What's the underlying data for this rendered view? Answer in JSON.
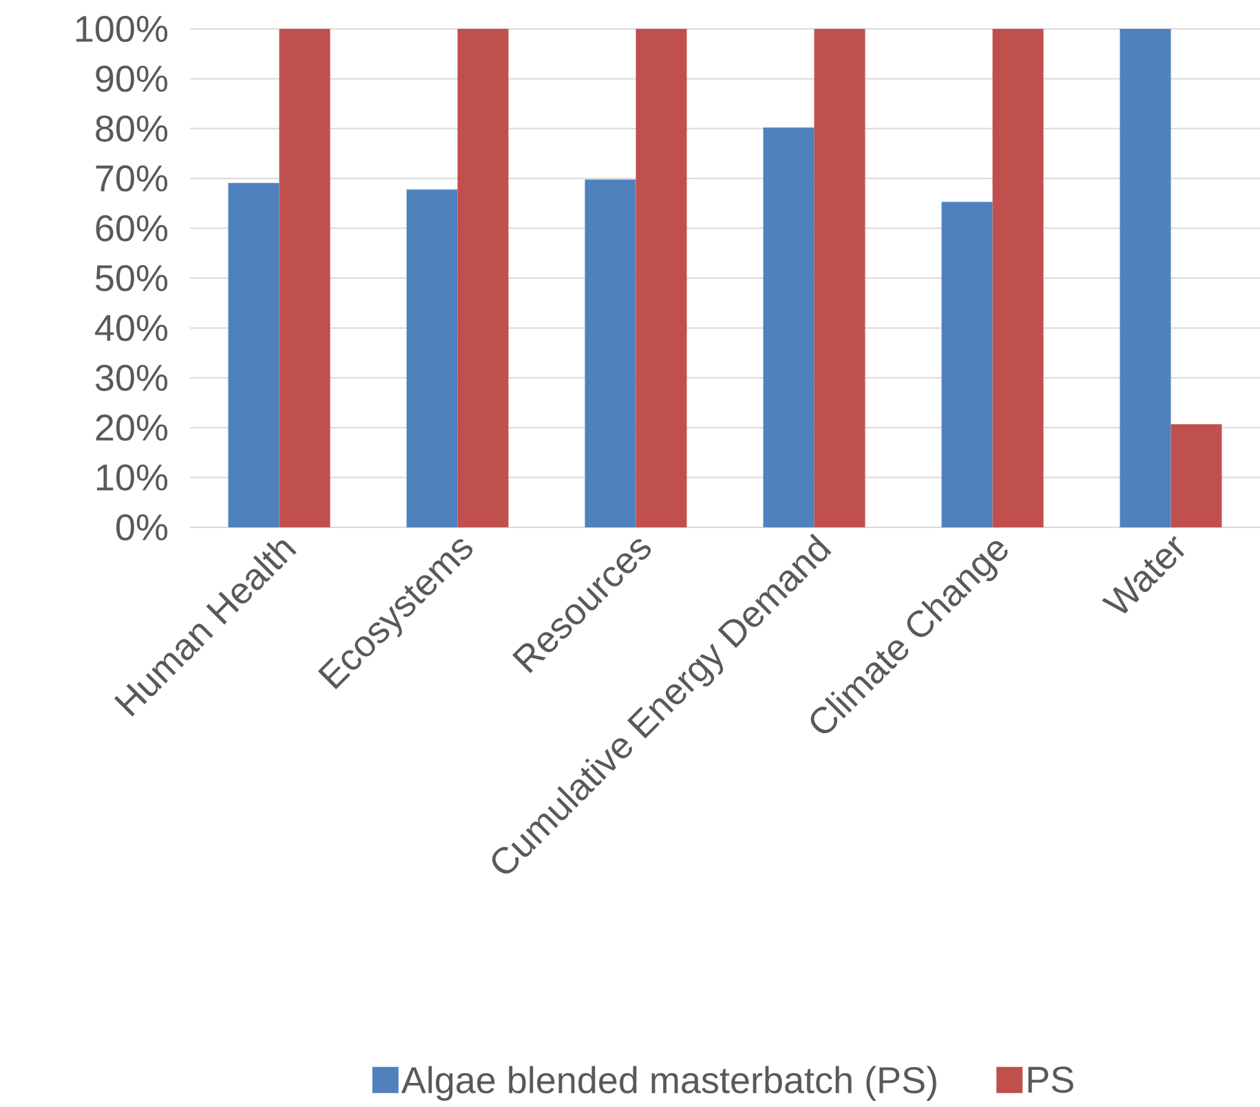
{
  "chart_data": {
    "type": "bar",
    "categories": [
      "Human Health",
      "Ecosystems",
      "Resources",
      "Cumulative Energy Demand",
      "Climate Change",
      "Water"
    ],
    "series": [
      {
        "name": "Algae blended masterbatch (PS)",
        "color": "#4f81bd",
        "values": [
          69.1,
          67.8,
          69.8,
          80.2,
          65.3,
          100
        ]
      },
      {
        "name": "PS",
        "color": "#c0504d",
        "values": [
          100,
          100,
          100,
          100,
          100,
          20.7
        ]
      }
    ],
    "ylim": [
      0,
      100
    ],
    "yticks": [
      {
        "value": 0,
        "label": "0%"
      },
      {
        "value": 10,
        "label": "10%"
      },
      {
        "value": 20,
        "label": "20%"
      },
      {
        "value": 30,
        "label": "30%"
      },
      {
        "value": 40,
        "label": "40%"
      },
      {
        "value": 50,
        "label": "50%"
      },
      {
        "value": 60,
        "label": "60%"
      },
      {
        "value": 70,
        "label": "70%"
      },
      {
        "value": 80,
        "label": "80%"
      },
      {
        "value": 90,
        "label": "90%"
      },
      {
        "value": 100,
        "label": "100%"
      }
    ],
    "grid": "y",
    "legend": "bottom"
  }
}
